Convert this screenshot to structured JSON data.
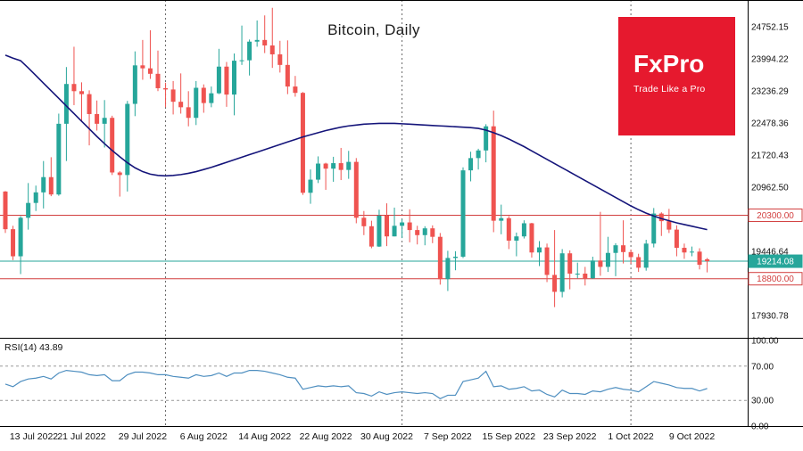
{
  "logo": {
    "name": "FxPro",
    "tagline": "Trade Like a Pro",
    "bg": "#e6192e"
  },
  "chart_data": {
    "type": "candlestick",
    "title": "Bitcoin, Daily",
    "symbol": "Bitcoin",
    "timeframe": "Daily",
    "colors": {
      "bull": "#26a69a",
      "bear": "#ef5350",
      "ma": "#14147a",
      "rsi": "#4f8fc0",
      "grid": "#666666",
      "level_red": "#d23f3f",
      "level_teal": "#26a69a"
    },
    "price_ticks": [
      "24752.15",
      "23994.22",
      "23236.29",
      "22478.36",
      "21720.43",
      "20962.50",
      "19446.64",
      "17930.78"
    ],
    "levels": [
      {
        "price": 20300.0,
        "label": "20300.00",
        "color": "#d23f3f",
        "style": "outline"
      },
      {
        "price": 19214.08,
        "label": "19214.08",
        "color": "#26a69a",
        "style": "solid"
      },
      {
        "price": 18800.0,
        "label": "18800.00",
        "color": "#d23f3f",
        "style": "outline"
      }
    ],
    "x_labels": [
      {
        "i": 2,
        "t": "13 Jul 2022"
      },
      {
        "i": 10,
        "t": "21 Jul 2022"
      },
      {
        "i": 18,
        "t": "29 Jul 2022"
      },
      {
        "i": 26,
        "t": "6 Aug 2022"
      },
      {
        "i": 34,
        "t": "14 Aug 2022"
      },
      {
        "i": 42,
        "t": "22 Aug 2022"
      },
      {
        "i": 50,
        "t": "30 Aug 2022"
      },
      {
        "i": 58,
        "t": "7 Sep 2022"
      },
      {
        "i": 66,
        "t": "15 Sep 2022"
      },
      {
        "i": 74,
        "t": "23 Sep 2022"
      },
      {
        "i": 82,
        "t": "1 Oct 2022"
      },
      {
        "i": 90,
        "t": "9 Oct 2022"
      }
    ],
    "month_gridlines": [
      21,
      52,
      82
    ],
    "candles": [
      [
        20860,
        20870,
        19880,
        19970
      ],
      [
        19970,
        20050,
        19240,
        19330
      ],
      [
        19330,
        20280,
        18910,
        20240
      ],
      [
        20240,
        21060,
        19960,
        20590
      ],
      [
        20590,
        21000,
        20400,
        20840
      ],
      [
        20840,
        21580,
        20460,
        21200
      ],
      [
        21200,
        21670,
        20750,
        20790
      ],
      [
        20790,
        22700,
        20760,
        22460
      ],
      [
        22460,
        23800,
        21580,
        23400
      ],
      [
        23400,
        24280,
        22900,
        23230
      ],
      [
        23230,
        23440,
        22500,
        23160
      ],
      [
        23160,
        23250,
        21950,
        22690
      ],
      [
        22690,
        23010,
        22300,
        22460
      ],
      [
        22460,
        23020,
        21900,
        22600
      ],
      [
        22600,
        22650,
        21250,
        21310
      ],
      [
        21310,
        21340,
        20740,
        21250
      ],
      [
        21250,
        23000,
        20860,
        22930
      ],
      [
        22930,
        24170,
        22640,
        23840
      ],
      [
        23840,
        24440,
        23500,
        23770
      ],
      [
        23770,
        24670,
        23520,
        23640
      ],
      [
        23640,
        24190,
        23230,
        23300
      ],
      [
        23300,
        23430,
        22850,
        23270
      ],
      [
        23270,
        23470,
        22680,
        22980
      ],
      [
        22980,
        23650,
        22700,
        22850
      ],
      [
        22850,
        23230,
        22400,
        22600
      ],
      [
        22600,
        23470,
        22430,
        23310
      ],
      [
        23310,
        23390,
        22720,
        22950
      ],
      [
        22950,
        23340,
        22850,
        23180
      ],
      [
        23180,
        24230,
        23160,
        23810
      ],
      [
        23810,
        23920,
        22860,
        23150
      ],
      [
        23150,
        24120,
        22660,
        23950
      ],
      [
        23950,
        24780,
        23850,
        23960
      ],
      [
        23960,
        24450,
        23600,
        24400
      ],
      [
        24400,
        24900,
        24280,
        24440
      ],
      [
        24440,
        25020,
        24130,
        24310
      ],
      [
        24310,
        25200,
        23780,
        24100
      ],
      [
        24100,
        24420,
        23670,
        23850
      ],
      [
        23850,
        24430,
        23160,
        23340
      ],
      [
        23340,
        23590,
        23100,
        23190
      ],
      [
        23190,
        23210,
        20780,
        20830
      ],
      [
        20830,
        21380,
        20570,
        21140
      ],
      [
        21140,
        21690,
        21060,
        21520
      ],
      [
        21520,
        21540,
        20900,
        21400
      ],
      [
        21400,
        21680,
        21090,
        21530
      ],
      [
        21530,
        21890,
        21130,
        21370
      ],
      [
        21370,
        21820,
        21160,
        21560
      ],
      [
        21560,
        21650,
        20110,
        20240
      ],
      [
        20240,
        20400,
        19830,
        20040
      ],
      [
        20040,
        20170,
        19520,
        19560
      ],
      [
        19560,
        20430,
        19550,
        20290
      ],
      [
        20290,
        20580,
        19570,
        19800
      ],
      [
        19800,
        20480,
        19800,
        20050
      ],
      [
        20050,
        20200,
        19760,
        20130
      ],
      [
        20130,
        20440,
        19660,
        19950
      ],
      [
        19950,
        20050,
        19610,
        19830
      ],
      [
        19830,
        20040,
        19590,
        19990
      ],
      [
        19990,
        20060,
        19640,
        19790
      ],
      [
        19790,
        19880,
        18660,
        18790
      ],
      [
        18790,
        19460,
        18510,
        19290
      ],
      [
        19290,
        19450,
        19000,
        19320
      ],
      [
        19320,
        21430,
        19290,
        21360
      ],
      [
        21360,
        21800,
        21100,
        21650
      ],
      [
        21650,
        21870,
        21380,
        21830
      ],
      [
        21830,
        22450,
        21550,
        22400
      ],
      [
        22400,
        22770,
        19900,
        20170
      ],
      [
        20170,
        20550,
        19850,
        20230
      ],
      [
        20230,
        20280,
        19500,
        19700
      ],
      [
        19700,
        19890,
        19330,
        19800
      ],
      [
        19800,
        20180,
        19750,
        20110
      ],
      [
        20110,
        20120,
        19300,
        19420
      ],
      [
        19420,
        19690,
        19100,
        19540
      ],
      [
        19540,
        19630,
        18720,
        18890
      ],
      [
        18890,
        19950,
        18130,
        18490
      ],
      [
        18490,
        19500,
        18360,
        19400
      ],
      [
        19400,
        19470,
        18550,
        18920
      ],
      [
        18920,
        19180,
        18810,
        18920
      ],
      [
        18920,
        19080,
        18640,
        18810
      ],
      [
        18810,
        19320,
        18800,
        19230
      ],
      [
        19230,
        20380,
        18870,
        19080
      ],
      [
        19080,
        19790,
        18960,
        19410
      ],
      [
        19410,
        19640,
        18860,
        19590
      ],
      [
        19590,
        20180,
        19160,
        19430
      ],
      [
        19430,
        19490,
        19150,
        19310
      ],
      [
        19310,
        19390,
        18960,
        19060
      ],
      [
        19060,
        19720,
        18990,
        19630
      ],
      [
        19630,
        20470,
        19540,
        20340
      ],
      [
        20340,
        20370,
        19810,
        20160
      ],
      [
        20160,
        20450,
        19880,
        19960
      ],
      [
        19960,
        20060,
        19330,
        19530
      ],
      [
        19530,
        19630,
        19270,
        19420
      ],
      [
        19420,
        19560,
        19330,
        19440
      ],
      [
        19440,
        19520,
        19020,
        19130
      ],
      [
        19260,
        19290,
        18950,
        19214.08
      ]
    ],
    "ma": [
      24080,
      24010,
      23950,
      23780,
      23600,
      23420,
      23240,
      23060,
      22880,
      22700,
      22520,
      22340,
      22160,
      21990,
      21830,
      21680,
      21540,
      21420,
      21330,
      21270,
      21240,
      21230,
      21240,
      21260,
      21290,
      21330,
      21380,
      21430,
      21490,
      21550,
      21610,
      21670,
      21730,
      21790,
      21850,
      21910,
      21970,
      22030,
      22090,
      22150,
      22200,
      22250,
      22300,
      22340,
      22380,
      22410,
      22430,
      22450,
      22460,
      22470,
      22470,
      22470,
      22460,
      22450,
      22440,
      22430,
      22420,
      22410,
      22400,
      22390,
      22380,
      22370,
      22350,
      22310,
      22250,
      22180,
      22100,
      22010,
      21920,
      21820,
      21720,
      21620,
      21520,
      21420,
      21320,
      21220,
      21120,
      21020,
      20920,
      20820,
      20720,
      20620,
      20520,
      20430,
      20350,
      20280,
      20220,
      20170,
      20120,
      20080,
      20040,
      20000,
      19960
    ],
    "rsi": [
      49,
      46,
      52,
      55,
      56,
      58,
      55,
      62,
      65,
      64,
      63,
      60,
      59,
      60,
      53,
      53,
      60,
      63,
      63,
      62,
      60,
      60,
      58,
      57,
      56,
      60,
      58,
      59,
      62,
      58,
      62,
      62,
      65,
      65,
      64,
      62,
      60,
      57,
      56,
      43,
      45,
      47,
      46,
      47,
      46,
      47,
      39,
      38,
      35,
      40,
      37,
      39,
      40,
      39,
      38,
      39,
      38,
      32,
      36,
      36,
      52,
      54,
      56,
      64,
      46,
      47,
      43,
      44,
      46,
      41,
      42,
      37,
      34,
      42,
      38,
      38,
      37,
      41,
      40,
      43,
      45,
      43,
      42,
      40,
      46,
      52,
      50,
      48,
      45,
      44,
      44,
      41,
      43.89
    ],
    "rsi_panel": {
      "label": "RSI(14) 43.89",
      "ticks": [
        "100.00",
        "70.00",
        "30.00",
        "0.00"
      ],
      "dashed_levels": [
        70,
        30
      ]
    }
  }
}
